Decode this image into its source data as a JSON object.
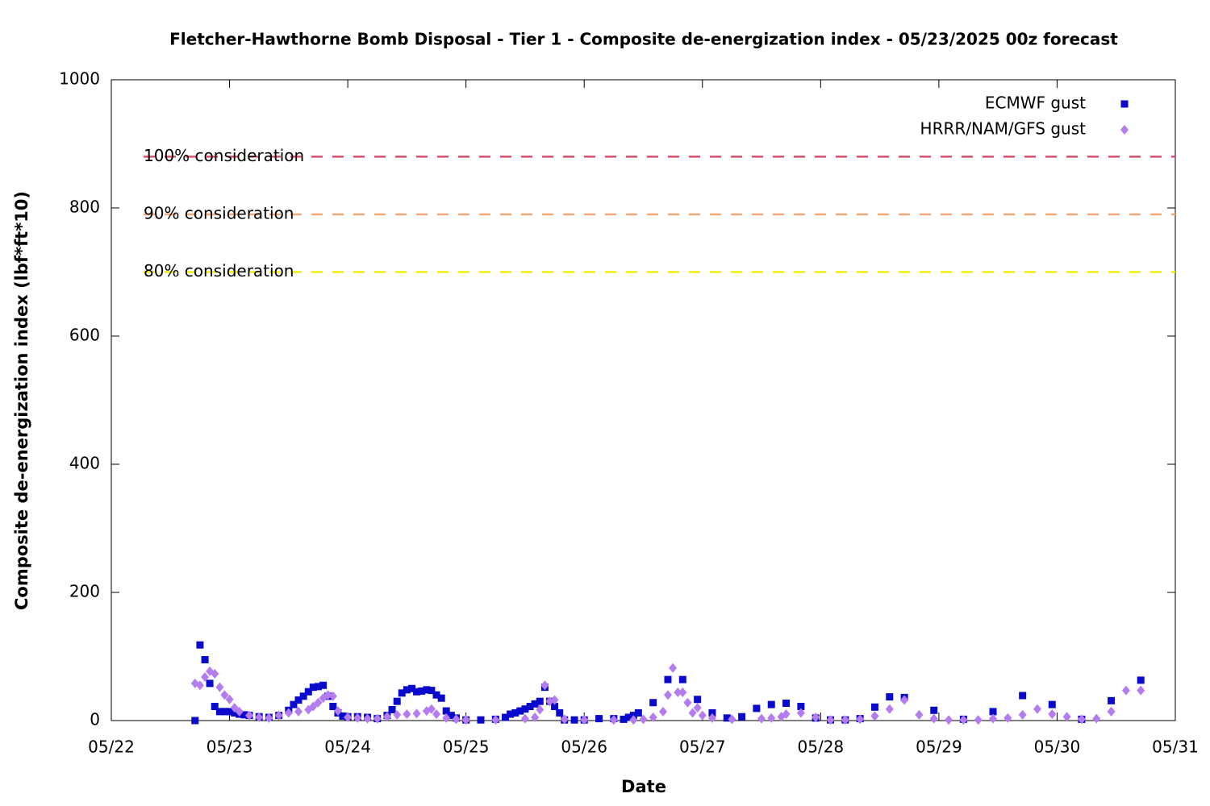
{
  "chart_data": {
    "type": "scatter",
    "title": "Fletcher-Hawthorne Bomb Disposal - Tier 1 - Composite de-energization index - 05/23/2025 00z forecast",
    "x_label": "Date",
    "y_label": "Composite de-energization index (lbf*ft*10)",
    "xlim": [
      0,
      9
    ],
    "xticks": [
      {
        "value": 0,
        "label": "05/22"
      },
      {
        "value": 1,
        "label": "05/23"
      },
      {
        "value": 2,
        "label": "05/24"
      },
      {
        "value": 3,
        "label": "05/25"
      },
      {
        "value": 4,
        "label": "05/26"
      },
      {
        "value": 5,
        "label": "05/27"
      },
      {
        "value": 6,
        "label": "05/28"
      },
      {
        "value": 7,
        "label": "05/29"
      },
      {
        "value": 8,
        "label": "05/30"
      },
      {
        "value": 9,
        "label": "05/31"
      }
    ],
    "ylim": [
      0,
      1000
    ],
    "yticks": [
      0,
      200,
      400,
      600,
      800,
      1000
    ],
    "legend": "top-right",
    "reference_lines": [
      {
        "value": 880,
        "label": "100% consideration",
        "color": "#d9506a"
      },
      {
        "value": 790,
        "label": "90% consideration",
        "color": "#f5a878"
      },
      {
        "value": 700,
        "label": "80% consideration",
        "color": "#f0f00a"
      }
    ],
    "series": [
      {
        "name": "ECMWF gust",
        "color": "#0a0acd",
        "marker": "square",
        "x": [
          0.708,
          0.75,
          0.792,
          0.833,
          0.875,
          0.917,
          0.958,
          1.0,
          1.042,
          1.083,
          1.125,
          1.167,
          1.25,
          1.333,
          1.417,
          1.5,
          1.542,
          1.583,
          1.625,
          1.667,
          1.708,
          1.75,
          1.792,
          1.833,
          1.875,
          1.917,
          1.958,
          2.0,
          2.083,
          2.167,
          2.25,
          2.333,
          2.375,
          2.417,
          2.458,
          2.5,
          2.542,
          2.583,
          2.625,
          2.667,
          2.708,
          2.75,
          2.792,
          2.833,
          2.875,
          2.917,
          3.0,
          3.125,
          3.25,
          3.333,
          3.375,
          3.417,
          3.458,
          3.5,
          3.542,
          3.583,
          3.625,
          3.667,
          3.708,
          3.75,
          3.792,
          3.833,
          3.917,
          4.0,
          4.125,
          4.25,
          4.333,
          4.375,
          4.417,
          4.458,
          4.583,
          4.708,
          4.833,
          4.958,
          5.083,
          5.208,
          5.333,
          5.458,
          5.583,
          5.708,
          5.833,
          5.958,
          6.083,
          6.208,
          6.333,
          6.458,
          6.583,
          6.708,
          6.958,
          7.208,
          7.458,
          7.708,
          7.958,
          8.208,
          8.458,
          8.708
        ],
        "values": [
          0,
          118,
          95,
          58,
          22,
          14,
          14,
          14,
          12,
          10,
          9,
          8,
          6,
          5,
          8,
          16,
          25,
          32,
          38,
          45,
          52,
          53,
          55,
          38,
          22,
          12,
          7,
          6,
          6,
          5,
          3,
          8,
          17,
          30,
          43,
          48,
          50,
          45,
          46,
          48,
          47,
          40,
          35,
          15,
          8,
          4,
          1,
          1,
          2,
          5,
          10,
          12,
          15,
          18,
          22,
          26,
          30,
          52,
          30,
          22,
          12,
          1,
          1,
          1,
          3,
          3,
          2,
          5,
          8,
          12,
          28,
          64,
          64,
          33,
          12,
          4,
          6,
          19,
          25,
          27,
          22,
          4,
          1,
          1,
          3,
          21,
          37,
          36,
          16,
          2,
          14,
          39,
          25,
          2,
          31,
          63
        ]
      },
      {
        "name": "HRRR/NAM/GFS gust",
        "color": "#b57bf0",
        "marker": "diamond",
        "x": [
          0.708,
          0.75,
          0.792,
          0.833,
          0.875,
          0.917,
          0.958,
          1.0,
          1.042,
          1.083,
          1.167,
          1.25,
          1.333,
          1.417,
          1.5,
          1.583,
          1.667,
          1.708,
          1.75,
          1.792,
          1.833,
          1.875,
          1.917,
          2.0,
          2.083,
          2.167,
          2.25,
          2.333,
          2.417,
          2.5,
          2.583,
          2.667,
          2.708,
          2.75,
          2.833,
          2.917,
          3.0,
          3.25,
          3.5,
          3.583,
          3.625,
          3.667,
          3.708,
          3.75,
          3.833,
          4.0,
          4.25,
          4.417,
          4.5,
          4.583,
          4.667,
          4.708,
          4.75,
          4.792,
          4.833,
          4.875,
          4.917,
          4.958,
          5.0,
          5.083,
          5.25,
          5.5,
          5.583,
          5.667,
          5.708,
          5.833,
          5.958,
          6.083,
          6.208,
          6.333,
          6.458,
          6.583,
          6.708,
          6.833,
          6.958,
          7.083,
          7.208,
          7.333,
          7.458,
          7.583,
          7.708,
          7.833,
          7.958,
          8.083,
          8.208,
          8.333,
          8.458,
          8.583,
          8.708
        ],
        "values": [
          58,
          55,
          68,
          77,
          73,
          52,
          40,
          33,
          20,
          14,
          8,
          5,
          4,
          8,
          12,
          14,
          17,
          22,
          28,
          35,
          40,
          38,
          15,
          5,
          4,
          3,
          3,
          6,
          9,
          10,
          11,
          15,
          18,
          10,
          4,
          2,
          1,
          1,
          3,
          5,
          17,
          55,
          30,
          32,
          2,
          1,
          1,
          1,
          2,
          5,
          14,
          40,
          82,
          44,
          44,
          28,
          12,
          20,
          8,
          4,
          2,
          3,
          4,
          6,
          10,
          12,
          5,
          1,
          1,
          2,
          7,
          18,
          32,
          9,
          3,
          1,
          1,
          1,
          3,
          4,
          9,
          18,
          10,
          6,
          2,
          3,
          14,
          47,
          47
        ]
      }
    ]
  }
}
